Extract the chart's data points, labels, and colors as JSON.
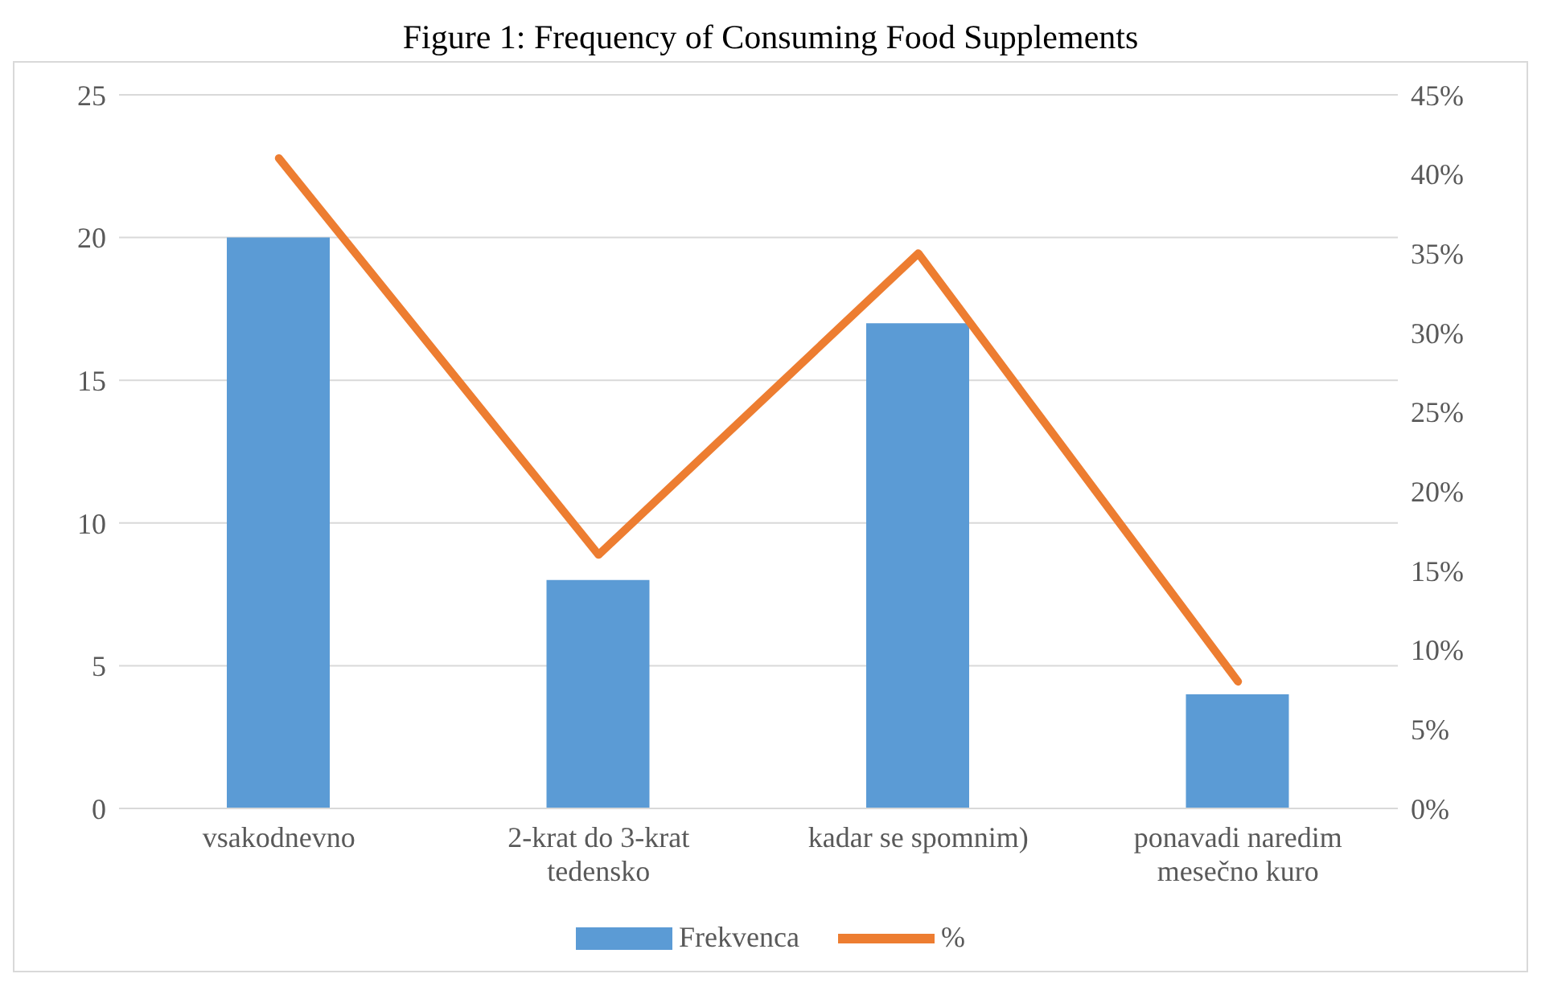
{
  "chart_data": {
    "type": "bar",
    "title": "Figure 1: Frequency of Consuming Food Supplements",
    "categories": [
      "vsakodnevno",
      "2-krat do 3-krat tedensko",
      "kadar se spomnim)",
      "ponavadi naredim mesečno kuro"
    ],
    "series": [
      {
        "name": "Frekvenca",
        "color": "#5b9bd5",
        "values": [
          20,
          8,
          17,
          4
        ]
      },
      {
        "name": "%",
        "type": "line",
        "axis": "y2",
        "color": "#ed7d31",
        "values": [
          41,
          16,
          35,
          8
        ]
      }
    ],
    "ylim": [
      0,
      25
    ],
    "yticks": [
      0,
      5,
      10,
      15,
      20,
      25
    ],
    "y2lim": [
      0,
      45
    ],
    "y2ticks": [
      {
        "value": 0,
        "label": "0%"
      },
      {
        "value": 5,
        "label": "5%"
      },
      {
        "value": 10,
        "label": "10%"
      },
      {
        "value": 15,
        "label": "15%"
      },
      {
        "value": 20,
        "label": "20%"
      },
      {
        "value": 25,
        "label": "25%"
      },
      {
        "value": 30,
        "label": "30%"
      },
      {
        "value": 35,
        "label": "35%"
      },
      {
        "value": 40,
        "label": "40%"
      },
      {
        "value": 45,
        "label": "45%"
      }
    ],
    "grid": "y",
    "legend": "bottom",
    "marker": "none",
    "line_style": "solid"
  }
}
